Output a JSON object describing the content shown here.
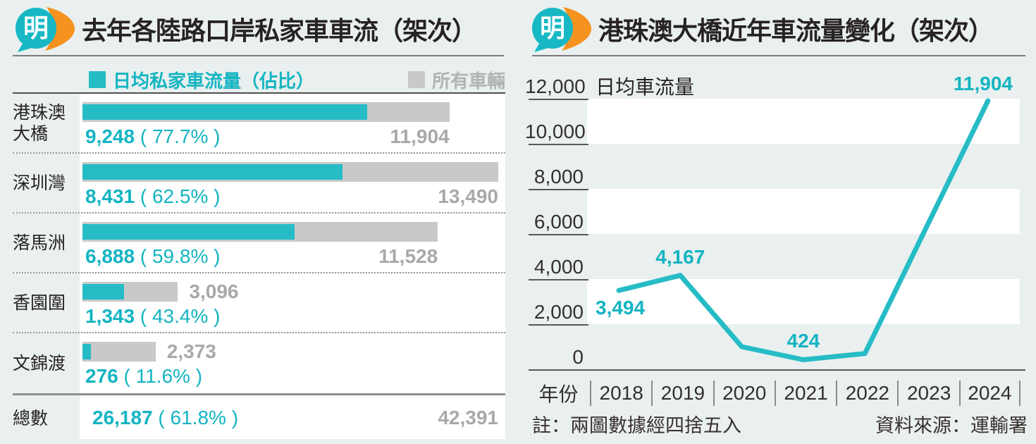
{
  "logo": {
    "char": "明"
  },
  "colors": {
    "background": "#e9f0ef",
    "teal_fill": "#26bcc6",
    "teal_text": "#14b4c2",
    "gray_fill": "#c9c9c9",
    "gray_text": "#a9a9a9",
    "ink": "#272223"
  },
  "footer": {
    "note": "註：兩圖數據經四捨五入",
    "source": "資料來源：運輸署"
  },
  "chart_data": [
    {
      "type": "bar",
      "orientation": "horizontal",
      "title": "去年各陸路口岸私家車車流（架次）",
      "legend": [
        {
          "name": "日均私家車流量（佔比）",
          "color": "#26bcc6"
        },
        {
          "name": "所有車輛",
          "color": "#c9c9c9"
        }
      ],
      "categories": [
        "港珠澳大橋",
        "深圳灣",
        "落馬洲",
        "香園圍",
        "文錦渡"
      ],
      "xmax": 13490,
      "series": [
        {
          "name": "日均私家車流量",
          "values": [
            9248,
            8431,
            6888,
            1343,
            276
          ],
          "display": [
            "9,248",
            "8,431",
            "6,888",
            "1,343",
            "276"
          ],
          "share_display": [
            "( 77.7% )",
            "( 62.5% )",
            "( 59.8% )",
            "( 43.4% )",
            "( 11.6% )"
          ]
        },
        {
          "name": "所有車輛",
          "values": [
            11904,
            13490,
            11528,
            3096,
            2373
          ],
          "display": [
            "11,904",
            "13,490",
            "11,528",
            "3,096",
            "2,373"
          ]
        }
      ],
      "total_label_placement": [
        "below",
        "below",
        "below",
        "beside",
        "beside"
      ],
      "total_row": {
        "label": "總數",
        "private_display": "26,187",
        "share_display": "( 61.8% )",
        "all_display": "42,391"
      }
    },
    {
      "type": "line",
      "title": "港珠澳大橋近年車流量變化（架次）",
      "ylabel": "日均車流量",
      "xlabel": "年份",
      "ylim": [
        0,
        12000
      ],
      "yticks": [
        "12,000",
        "10,000",
        "8,000",
        "6,000",
        "4,000",
        "2,000",
        "0"
      ],
      "x": [
        "2018",
        "2019",
        "2020",
        "2021",
        "2022",
        "2023",
        "2024"
      ],
      "values": [
        3494,
        4167,
        1000,
        424,
        700,
        6300,
        11904
      ],
      "estimated_from_gridlines": [
        false,
        false,
        true,
        false,
        true,
        true,
        false
      ],
      "point_labels": [
        {
          "x": "2018",
          "text": "3,494",
          "placement": "below-left"
        },
        {
          "x": "2019",
          "text": "4,167",
          "placement": "above"
        },
        {
          "x": "2021",
          "text": "424",
          "placement": "above"
        },
        {
          "x": "2024",
          "text": "11,904",
          "placement": "above-right"
        }
      ],
      "line_color": "#26bcc6",
      "grid": "horizontal-bands",
      "legend_position": "none"
    }
  ]
}
